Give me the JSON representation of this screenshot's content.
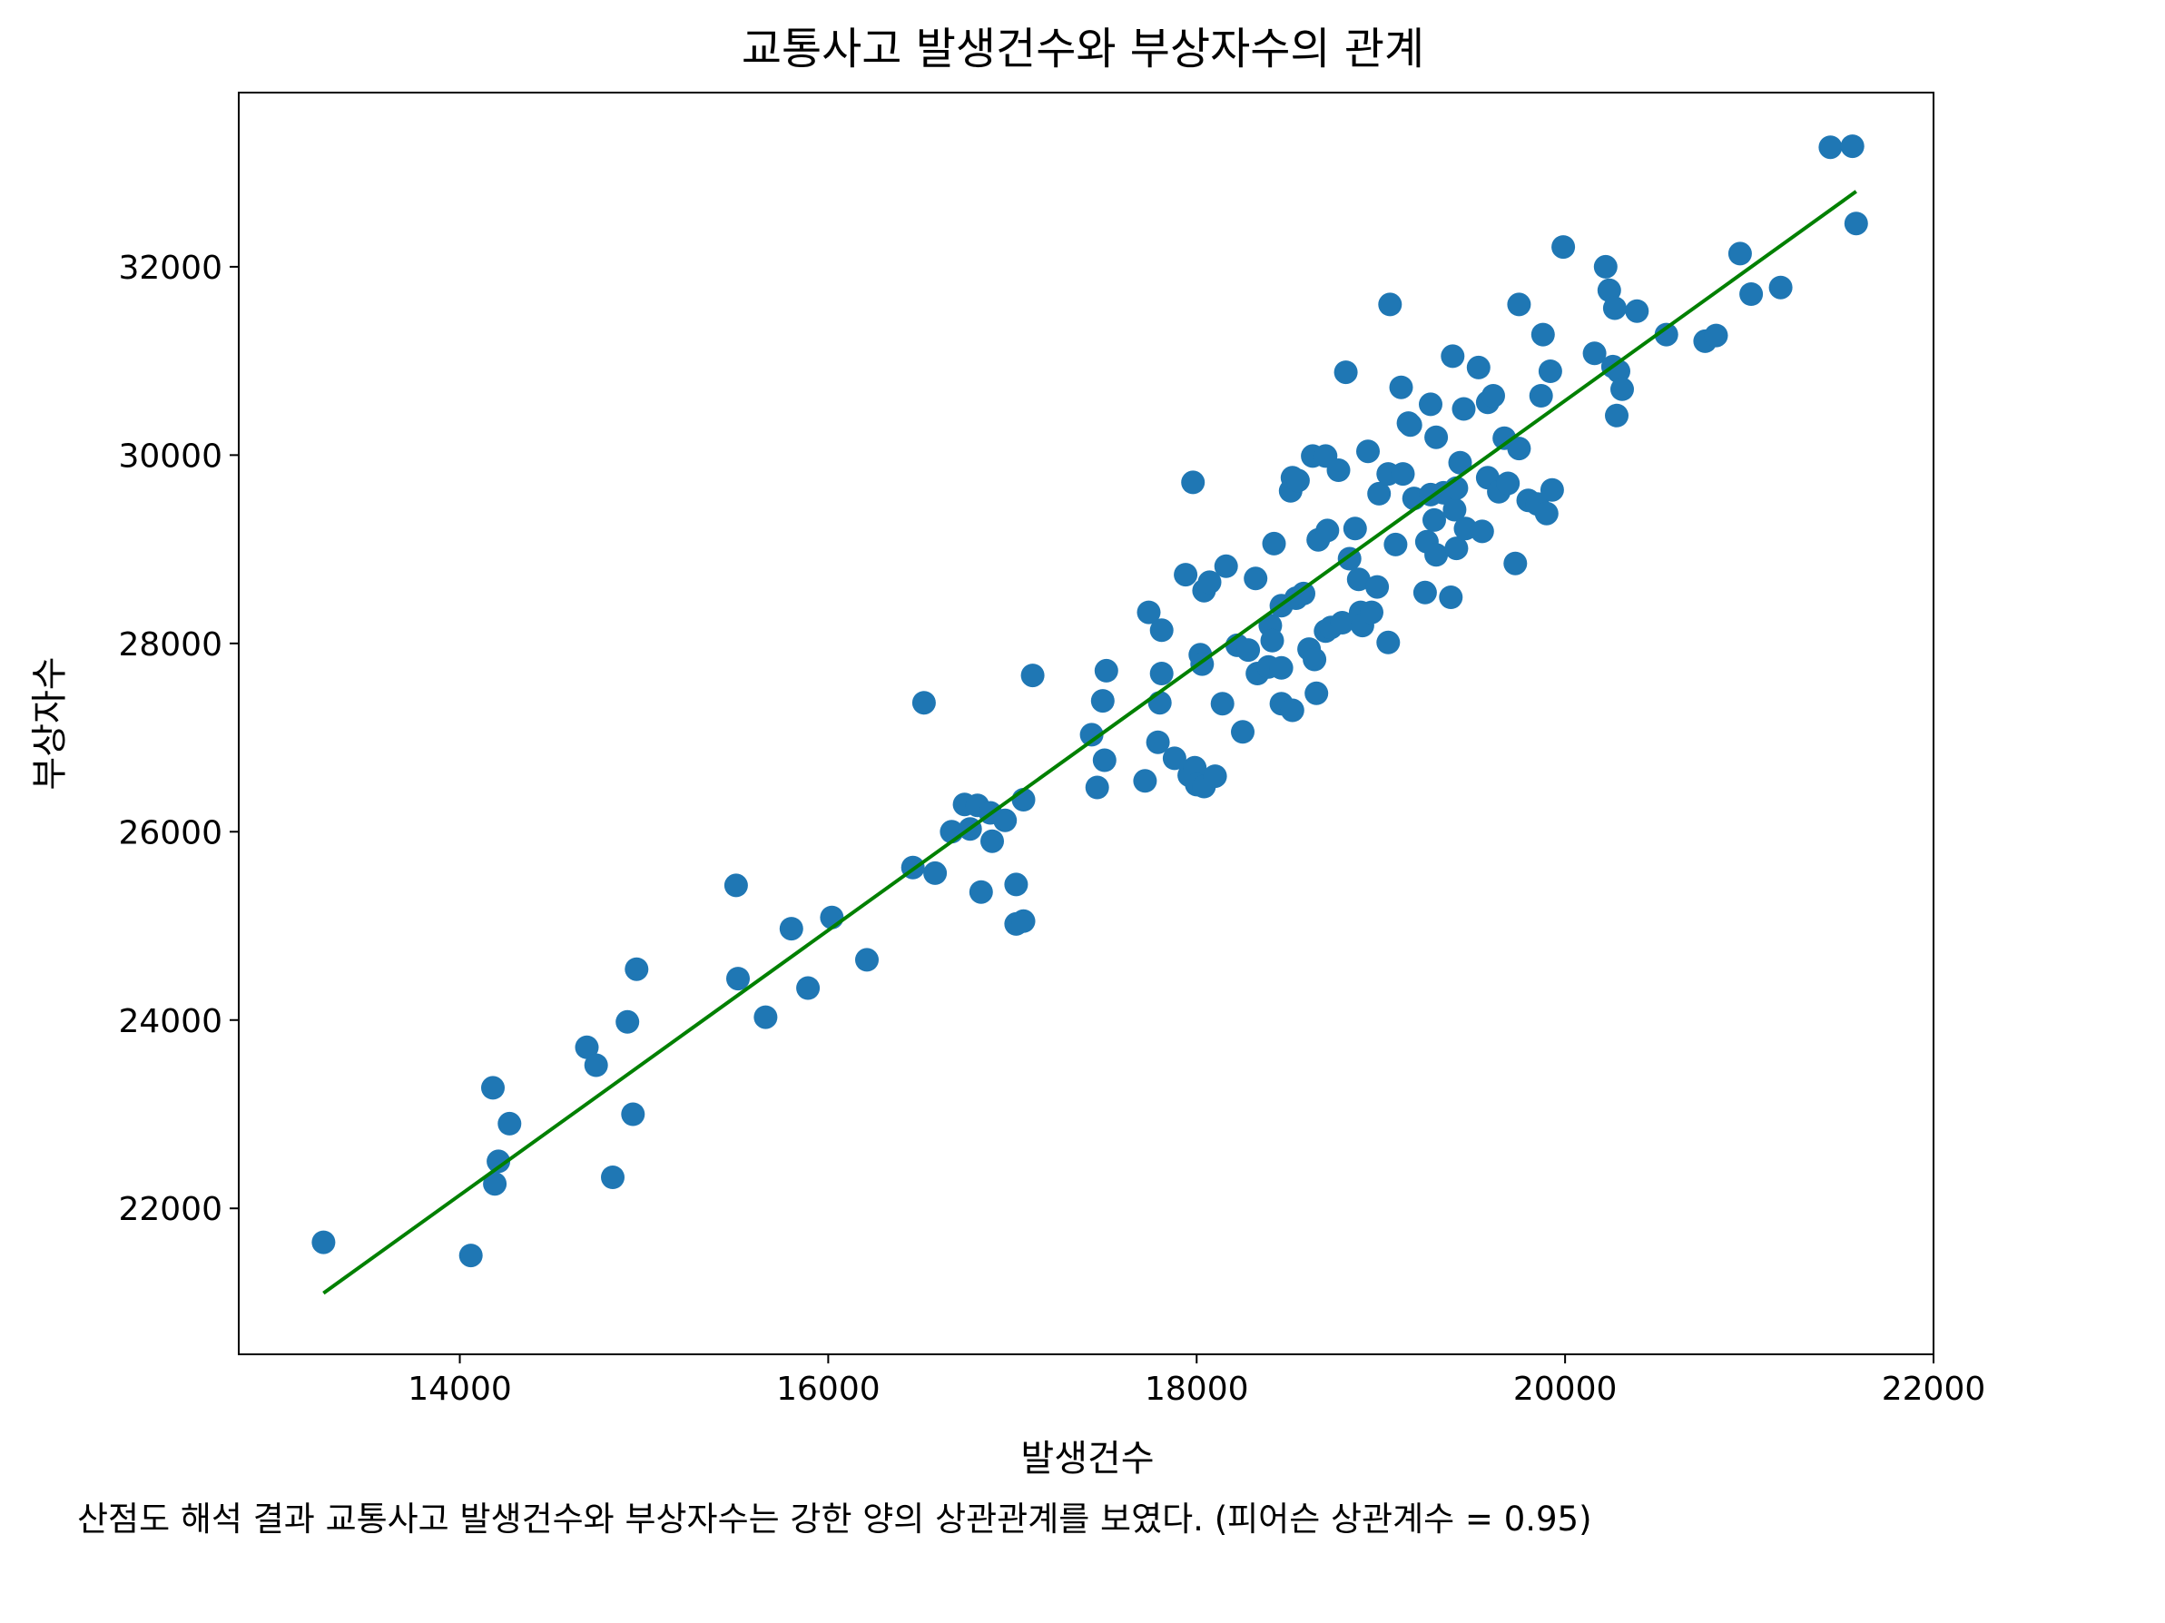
{
  "chart_data": {
    "type": "scatter",
    "title": "교통사고 발생건수와 부상자수의 관계",
    "xlabel": "발생건수",
    "ylabel": "부상자수",
    "xlim": [
      12800,
      22000
    ],
    "ylim": [
      20450,
      33850
    ],
    "xticks": [
      14000,
      16000,
      18000,
      20000,
      22000
    ],
    "yticks": [
      22000,
      24000,
      26000,
      28000,
      30000,
      32000
    ],
    "grid": false,
    "legend": "none",
    "colors": {
      "points": "#1f77b4",
      "trendline": "#008000"
    },
    "trendline": {
      "x": [
        13260,
        21580
      ],
      "y": [
        21100,
        32800
      ]
    },
    "points": [
      [
        13260,
        21640
      ],
      [
        14060,
        21500
      ],
      [
        14180,
        23280
      ],
      [
        14190,
        22260
      ],
      [
        14210,
        22500
      ],
      [
        14270,
        22900
      ],
      [
        14690,
        23710
      ],
      [
        14740,
        23520
      ],
      [
        14830,
        22330
      ],
      [
        14910,
        23980
      ],
      [
        14940,
        23000
      ],
      [
        14960,
        24540
      ],
      [
        15500,
        25430
      ],
      [
        15510,
        24440
      ],
      [
        15660,
        24030
      ],
      [
        15800,
        24970
      ],
      [
        15890,
        24340
      ],
      [
        16020,
        25090
      ],
      [
        16210,
        24640
      ],
      [
        16460,
        25620
      ],
      [
        16520,
        27370
      ],
      [
        16580,
        25560
      ],
      [
        16670,
        26000
      ],
      [
        16740,
        26290
      ],
      [
        16770,
        26030
      ],
      [
        16810,
        26280
      ],
      [
        16830,
        25360
      ],
      [
        16880,
        26200
      ],
      [
        16890,
        25900
      ],
      [
        16960,
        26120
      ],
      [
        17020,
        25440
      ],
      [
        17020,
        25020
      ],
      [
        17060,
        25050
      ],
      [
        17060,
        26340
      ],
      [
        17110,
        27660
      ],
      [
        17430,
        27030
      ],
      [
        17460,
        26470
      ],
      [
        17490,
        27390
      ],
      [
        17500,
        26760
      ],
      [
        17510,
        27710
      ],
      [
        17720,
        26540
      ],
      [
        17740,
        28330
      ],
      [
        17790,
        26950
      ],
      [
        17800,
        27370
      ],
      [
        17810,
        27680
      ],
      [
        17810,
        28140
      ],
      [
        17880,
        26780
      ],
      [
        17940,
        28730
      ],
      [
        17960,
        26600
      ],
      [
        17980,
        29710
      ],
      [
        17990,
        26680
      ],
      [
        18000,
        26500
      ],
      [
        18020,
        27880
      ],
      [
        18030,
        27780
      ],
      [
        18040,
        26480
      ],
      [
        18040,
        28560
      ],
      [
        18070,
        28650
      ],
      [
        18100,
        26590
      ],
      [
        18140,
        27360
      ],
      [
        18160,
        28820
      ],
      [
        18220,
        27980
      ],
      [
        18250,
        27060
      ],
      [
        18280,
        27930
      ],
      [
        18320,
        28690
      ],
      [
        18330,
        27680
      ],
      [
        18390,
        27750
      ],
      [
        18400,
        28190
      ],
      [
        18410,
        28030
      ],
      [
        18420,
        29060
      ],
      [
        18460,
        27740
      ],
      [
        18460,
        28400
      ],
      [
        18460,
        27360
      ],
      [
        18510,
        29620
      ],
      [
        18520,
        29760
      ],
      [
        18520,
        27290
      ],
      [
        18540,
        28480
      ],
      [
        18550,
        29730
      ],
      [
        18580,
        28530
      ],
      [
        18610,
        27940
      ],
      [
        18630,
        29990
      ],
      [
        18640,
        27830
      ],
      [
        18650,
        27470
      ],
      [
        18660,
        29100
      ],
      [
        18700,
        28130
      ],
      [
        18700,
        29990
      ],
      [
        18710,
        29200
      ],
      [
        18730,
        28170
      ],
      [
        18770,
        29840
      ],
      [
        18790,
        28220
      ],
      [
        18810,
        30880
      ],
      [
        18830,
        28900
      ],
      [
        18860,
        29220
      ],
      [
        18880,
        28680
      ],
      [
        18890,
        28330
      ],
      [
        18900,
        28190
      ],
      [
        18930,
        30040
      ],
      [
        18950,
        28330
      ],
      [
        18980,
        28600
      ],
      [
        18990,
        29590
      ],
      [
        19040,
        28010
      ],
      [
        19040,
        29800
      ],
      [
        19050,
        31600
      ],
      [
        19080,
        29050
      ],
      [
        19110,
        30720
      ],
      [
        19120,
        29800
      ],
      [
        19150,
        30340
      ],
      [
        19160,
        30320
      ],
      [
        19180,
        29540
      ],
      [
        19240,
        28540
      ],
      [
        19250,
        29080
      ],
      [
        19270,
        30540
      ],
      [
        19270,
        29580
      ],
      [
        19290,
        29310
      ],
      [
        19300,
        30190
      ],
      [
        19300,
        28940
      ],
      [
        19340,
        29600
      ],
      [
        19380,
        28490
      ],
      [
        19390,
        31050
      ],
      [
        19400,
        29420
      ],
      [
        19410,
        29010
      ],
      [
        19410,
        29650
      ],
      [
        19430,
        29920
      ],
      [
        19450,
        30490
      ],
      [
        19460,
        29220
      ],
      [
        19530,
        30930
      ],
      [
        19550,
        29190
      ],
      [
        19580,
        29760
      ],
      [
        19580,
        30560
      ],
      [
        19610,
        30630
      ],
      [
        19640,
        29610
      ],
      [
        19670,
        30180
      ],
      [
        19690,
        29700
      ],
      [
        19730,
        28850
      ],
      [
        19750,
        31600
      ],
      [
        19750,
        30070
      ],
      [
        19800,
        29520
      ],
      [
        19850,
        29480
      ],
      [
        19870,
        30630
      ],
      [
        19880,
        31280
      ],
      [
        19900,
        29380
      ],
      [
        19920,
        30890
      ],
      [
        19930,
        29630
      ],
      [
        19990,
        32210
      ],
      [
        20160,
        31080
      ],
      [
        20220,
        32000
      ],
      [
        20240,
        31750
      ],
      [
        20260,
        30940
      ],
      [
        20270,
        31560
      ],
      [
        20280,
        30420
      ],
      [
        20290,
        30890
      ],
      [
        20310,
        30700
      ],
      [
        20390,
        31530
      ],
      [
        20550,
        31280
      ],
      [
        20760,
        31210
      ],
      [
        20820,
        31270
      ],
      [
        20950,
        32140
      ],
      [
        21010,
        31710
      ],
      [
        21170,
        31780
      ],
      [
        21440,
        33270
      ],
      [
        21560,
        33280
      ],
      [
        21580,
        32460
      ]
    ]
  },
  "caption": "산점도 해석 결과 교통사고 발생건수와 부상자수는 강한 양의 상관관계를 보였다. (피어슨 상관계수 = 0.95)"
}
